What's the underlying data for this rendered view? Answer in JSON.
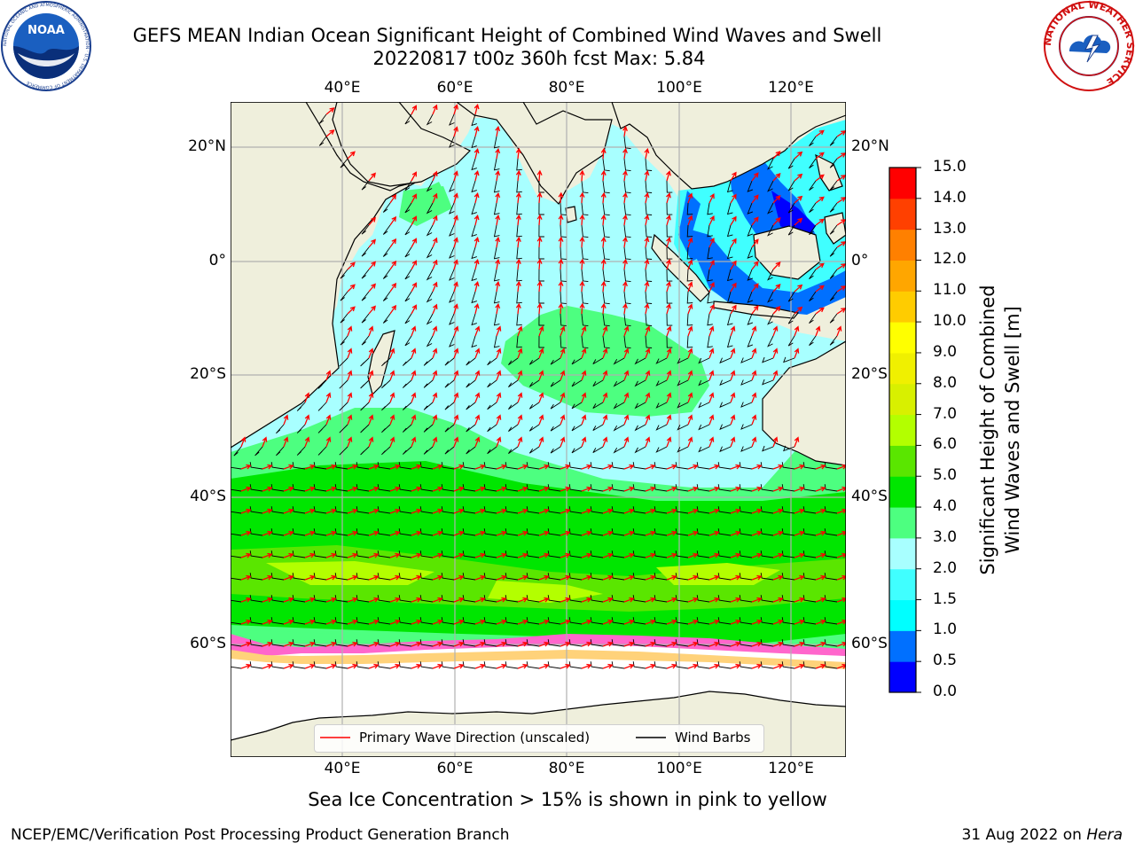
{
  "title": {
    "line1": "GEFS MEAN Indian Ocean Significant Height of Combined Wind Waves and Swell",
    "line2": "20220817 t00z 360h fcst   Max: 5.84"
  },
  "map": {
    "lon_ticks": [
      "40°E",
      "60°E",
      "80°E",
      "100°E",
      "120°E"
    ],
    "lat_ticks": [
      "20°N",
      "0°",
      "20°S",
      "40°S",
      "60°S"
    ],
    "lon_range": [
      20,
      129
    ],
    "lat_range": [
      -76,
      28
    ],
    "colors": {
      "land": "#efefdc",
      "ice_free_sea": "#ffffff",
      "wave_arrow": "#ff0000",
      "wind_barb": "#000000",
      "grid": "#b0b0b0"
    }
  },
  "legend": {
    "primary_wave_label": "Primary Wave Direction (unscaled)",
    "wind_barbs_label": "Wind Barbs"
  },
  "colorbar": {
    "label_line1": "Significant Height of Combined",
    "label_line2": "Wind Waves and Swell [m]",
    "ticks": [
      "0.0",
      "0.5",
      "1.0",
      "1.5",
      "2.0",
      "3.0",
      "4.0",
      "5.0",
      "6.0",
      "7.0",
      "8.0",
      "9.0",
      "10.0",
      "11.0",
      "12.0",
      "13.0",
      "14.0",
      "15.0"
    ],
    "colors": [
      "#0000ff",
      "#0070ff",
      "#00ffff",
      "#40ffff",
      "#a8ffff",
      "#4dff80",
      "#00e600",
      "#5ae600",
      "#b3ff00",
      "#d8f000",
      "#f0f000",
      "#ffff00",
      "#ffcc00",
      "#ffa600",
      "#ff8000",
      "#ff4000",
      "#ff0000"
    ]
  },
  "subtitle": "Sea Ice Concentration > 15% is shown in pink to yellow",
  "footer": {
    "left": "NCEP/EMC/Verification Post Processing Product Generation Branch",
    "right_prefix": "31 Aug 2022 on ",
    "right_host": "Hera"
  },
  "logos": {
    "noaa_text": "NOAA",
    "noaa_ring_text": "NATIONAL OCEANIC AND ATMOSPHERIC ADMINISTRATION · U.S. DEPARTMENT OF COMMERCE",
    "nws_ring_text": "NATIONAL WEATHER SERVICE"
  }
}
